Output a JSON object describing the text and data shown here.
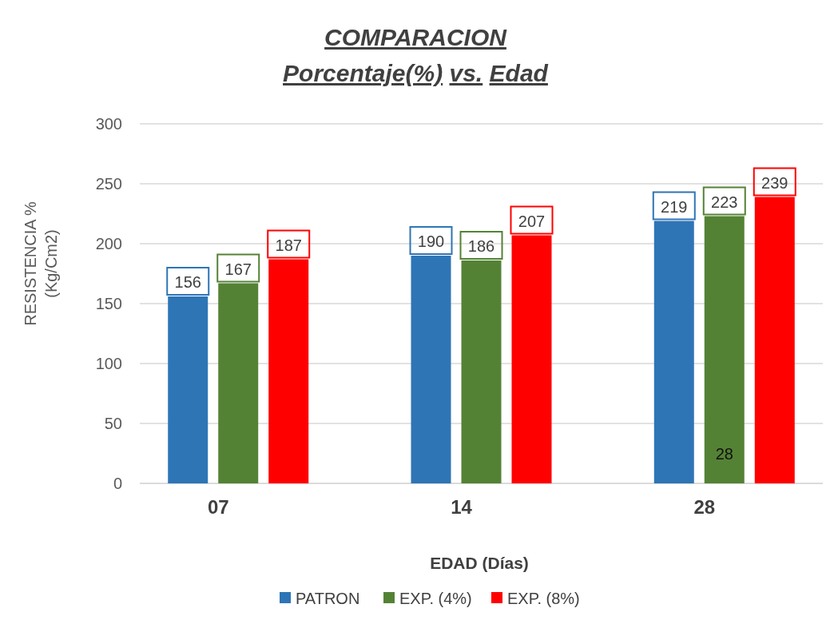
{
  "chart_data": {
    "type": "bar",
    "title": "COMPARACION\nPorcentaje(%) vs.  Edad",
    "xlabel": "EDAD (Días)",
    "ylabel": "RESISTENCIA %\n(Kg/Cm2)",
    "categories": [
      "07",
      "14",
      "28"
    ],
    "series": [
      {
        "name": "PATRON",
        "color": "#2e75b6",
        "values": [
          156,
          190,
          219
        ]
      },
      {
        "name": "EXP. (4%)",
        "color": "#548235",
        "values": [
          167,
          186,
          223
        ]
      },
      {
        "name": "EXP. (8%)",
        "color": "#ff0000",
        "values": [
          187,
          207,
          239
        ]
      }
    ],
    "ylim": [
      0,
      300
    ],
    "yticks": [
      0,
      50,
      100,
      150,
      200,
      250,
      300
    ],
    "grid": "y",
    "legend": "bottom",
    "data_labels": true,
    "annotations": [
      {
        "text": "28",
        "x": "28",
        "y": 25
      }
    ]
  }
}
